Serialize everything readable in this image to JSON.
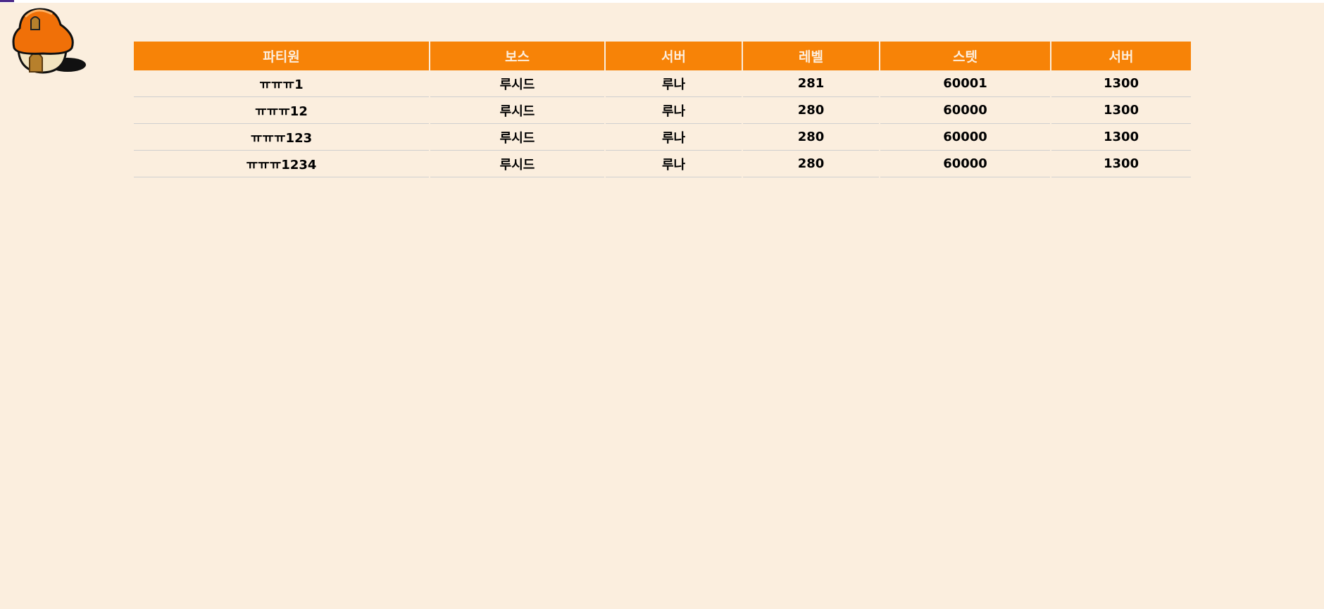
{
  "colors": {
    "header_bg": "#f78307",
    "page_bg": "#fbeede",
    "header_text": "#fdeedd"
  },
  "logo": {
    "icon": "mushroom-house-icon"
  },
  "table": {
    "headers": [
      "파티원",
      "보스",
      "서버",
      "레벨",
      "스텟",
      "서버"
    ],
    "rows": [
      [
        "ㅠㅠㅠ1",
        "루시드",
        "루나",
        "281",
        "60001",
        "1300"
      ],
      [
        "ㅠㅠㅠ12",
        "루시드",
        "루나",
        "280",
        "60000",
        "1300"
      ],
      [
        "ㅠㅠㅠ123",
        "루시드",
        "루나",
        "280",
        "60000",
        "1300"
      ],
      [
        "ㅠㅠㅠ1234",
        "루시드",
        "루나",
        "280",
        "60000",
        "1300"
      ]
    ]
  }
}
